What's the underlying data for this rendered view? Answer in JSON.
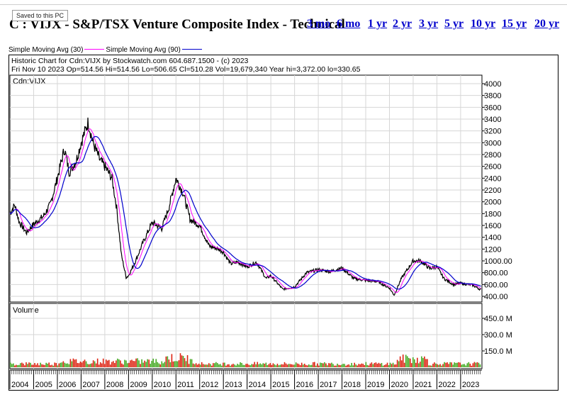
{
  "tooltip": "Saved to this PC",
  "title": "C : VIJX - S&P/TSX Venture Composite Index - Technical",
  "periods": [
    "3 mo",
    "6 mo",
    "1 yr",
    "2 yr",
    "3 yr",
    "5 yr",
    "10 yr",
    "15 yr",
    "20 yr"
  ],
  "legend": {
    "sma30": "Simple Moving Avg (30)",
    "sma90": "Simple Moving Avg (90)",
    "sma30_color": "#ff00ff",
    "sma90_color": "#0000cc"
  },
  "chart_header": {
    "line1": "Historic Chart for Cdn:VIJX by Stockwatch.com 604.687.1500 - (c) 2023",
    "line2": "Fri Nov 10 2023   Op=514.56  Hi=514.56  Lo=506.65  Cl=510.28  Vol=19,679,340   Year hi=3,372.00  lo=330.65"
  },
  "price_panel_label": "Cdn:VIJX",
  "volume_panel_label": "Volume",
  "price_ticks": [
    "4000",
    "3800",
    "3600",
    "3400",
    "3200",
    "3000",
    "2800",
    "2600",
    "2400",
    "2200",
    "2000",
    "1800",
    "1600",
    "1400",
    "1200",
    "1000.00",
    "800.00",
    "600.00",
    "400.00"
  ],
  "volume_ticks": [
    "450.0 M",
    "300.0 M",
    "150.0 M"
  ],
  "year_labels": [
    "2004",
    "2005",
    "2006",
    "2007",
    "2008",
    "2009",
    "2010",
    "2011",
    "2012",
    "2013",
    "2014",
    "2015",
    "2016",
    "2017",
    "2018",
    "2019",
    "2020",
    "2021",
    "2022",
    "2023"
  ],
  "chart_data": {
    "type": "line",
    "x": [
      2004.0,
      2004.2,
      2004.4,
      2004.7,
      2005.0,
      2005.4,
      2005.7,
      2006.0,
      2006.3,
      2006.5,
      2006.8,
      2007.0,
      2007.3,
      2007.5,
      2007.8,
      2008.0,
      2008.3,
      2008.5,
      2008.7,
      2008.9,
      2009.0,
      2009.3,
      2009.6,
      2010.0,
      2010.4,
      2010.7,
      2011.0,
      2011.3,
      2011.6,
      2012.0,
      2012.4,
      2012.8,
      2013.0,
      2013.3,
      2013.6,
      2014.0,
      2014.4,
      2014.8,
      2015.0,
      2015.5,
      2016.0,
      2016.5,
      2017.0,
      2017.5,
      2018.0,
      2018.5,
      2019.0,
      2019.5,
      2020.0,
      2020.2,
      2020.5,
      2021.0,
      2021.3,
      2021.7,
      2022.0,
      2022.3,
      2022.7,
      2023.0,
      2023.5,
      2023.86
    ],
    "series": [
      {
        "name": "Cdn:VIJX",
        "values": [
          1800,
          1950,
          1650,
          1480,
          1620,
          1750,
          1950,
          2400,
          2900,
          2500,
          2700,
          3000,
          3350,
          3000,
          2700,
          2600,
          2400,
          1900,
          1100,
          720,
          750,
          1000,
          1300,
          1650,
          1550,
          1900,
          2400,
          2150,
          1700,
          1600,
          1250,
          1200,
          1150,
          950,
          980,
          900,
          980,
          700,
          750,
          520,
          560,
          800,
          850,
          820,
          880,
          700,
          670,
          650,
          540,
          420,
          700,
          1000,
          1000,
          870,
          900,
          700,
          600,
          620,
          590,
          510
        ]
      }
    ],
    "price_axis_range": [
      400,
      4000
    ],
    "volume_axis_range": [
      0,
      450
    ],
    "volume_unit": "M",
    "x_range": [
      2004,
      2023.9
    ],
    "grid": true
  }
}
